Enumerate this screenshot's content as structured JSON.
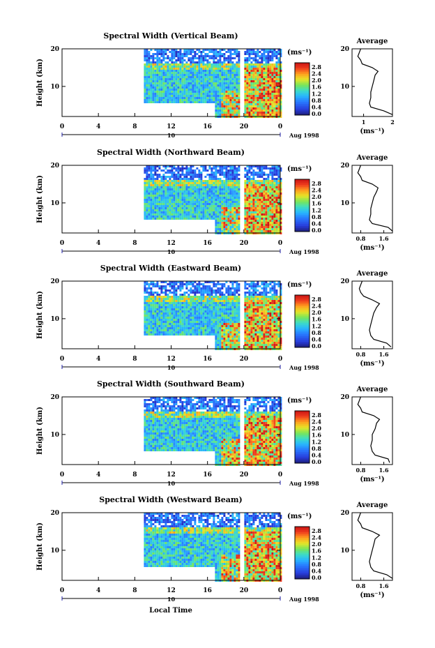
{
  "chart_data": {
    "type": "heatmap",
    "x_axis": {
      "label": "Local Time",
      "range": [
        0,
        24
      ],
      "ticks": [
        "0",
        "4",
        "8",
        "12",
        "16",
        "20",
        "0"
      ],
      "date_label": "10",
      "month_label": "Aug 1998"
    },
    "y_axis": {
      "label": "Height (km)",
      "range": [
        2,
        20
      ],
      "ticks": [
        "20",
        "10"
      ]
    },
    "colorbar": {
      "unit": "(ms⁻¹)",
      "ticks": [
        "2.8",
        "2.4",
        "2.0",
        "1.6",
        "1.2",
        "0.8",
        "0.4",
        "0.0"
      ]
    },
    "data_coverage": {
      "start_hour": 9,
      "gap_hours": [
        19.5,
        20
      ],
      "low_cutoff_km": 5
    },
    "average_title": "Average",
    "average_unit": "(ms⁻¹)",
    "panels": [
      {
        "title": "Spectral Width (Vertical Beam)",
        "avg_xticks": [
          "1",
          "2"
        ],
        "avg_xrange": [
          0.6,
          2.0
        ],
        "average_profile": {
          "height": [
            2.5,
            3.5,
            4.5,
            5.5,
            7,
            8.5,
            10,
            11.5,
            13,
            14,
            15,
            16,
            17,
            18,
            19,
            20
          ],
          "value": [
            2.0,
            1.7,
            1.25,
            1.2,
            1.25,
            1.25,
            1.3,
            1.35,
            1.4,
            1.5,
            1.3,
            0.95,
            0.9,
            0.8,
            0.85,
            0.9
          ]
        }
      },
      {
        "title": "Spectral Width (Northward Beam)",
        "avg_xticks": [
          "0.8",
          "1.6"
        ],
        "avg_xrange": [
          0.5,
          1.9
        ],
        "average_profile": {
          "height": [
            2.5,
            3.5,
            4.5,
            5.5,
            7,
            8.5,
            10,
            11.5,
            13,
            14,
            15,
            16,
            17,
            18,
            19,
            20
          ],
          "value": [
            1.9,
            1.75,
            1.2,
            1.1,
            1.15,
            1.15,
            1.2,
            1.25,
            1.35,
            1.4,
            1.2,
            0.85,
            0.8,
            0.7,
            0.75,
            0.8
          ]
        }
      },
      {
        "title": "Spectral Width (Eastward Beam)",
        "avg_xticks": [
          "0.8",
          "1.6"
        ],
        "avg_xrange": [
          0.5,
          1.9
        ],
        "average_profile": {
          "height": [
            2.5,
            3.5,
            4.5,
            5.5,
            7,
            8.5,
            10,
            11.5,
            13,
            14,
            15,
            16,
            17,
            18,
            19,
            20
          ],
          "value": [
            1.85,
            1.7,
            1.25,
            1.15,
            1.1,
            1.15,
            1.2,
            1.25,
            1.35,
            1.45,
            1.2,
            0.9,
            0.8,
            0.75,
            0.8,
            0.85
          ]
        }
      },
      {
        "title": "Spectral Width (Southward Beam)",
        "avg_xticks": [
          "0.8",
          "1.6"
        ],
        "avg_xrange": [
          0.5,
          1.9
        ],
        "average_profile": {
          "height": [
            2.5,
            3.5,
            4.5,
            5.5,
            7,
            8.5,
            10,
            11.5,
            13,
            14,
            15,
            16,
            17,
            18,
            19,
            20
          ],
          "value": [
            1.8,
            1.75,
            1.3,
            1.2,
            1.15,
            1.2,
            1.2,
            1.3,
            1.35,
            1.45,
            1.25,
            0.85,
            0.8,
            0.7,
            0.75,
            0.8
          ]
        }
      },
      {
        "title": "Spectral Width (Westward Beam)",
        "avg_xticks": [
          "0.8",
          "1.6"
        ],
        "avg_xrange": [
          0.5,
          1.9
        ],
        "average_profile": {
          "height": [
            2.5,
            3.5,
            4.5,
            5.5,
            7,
            8.5,
            10,
            11.5,
            13,
            14,
            15,
            16,
            17,
            18,
            19,
            20
          ],
          "value": [
            1.9,
            1.7,
            1.25,
            1.15,
            1.1,
            1.15,
            1.2,
            1.25,
            1.3,
            1.45,
            1.2,
            0.85,
            0.8,
            0.7,
            0.75,
            0.8
          ]
        }
      }
    ]
  }
}
